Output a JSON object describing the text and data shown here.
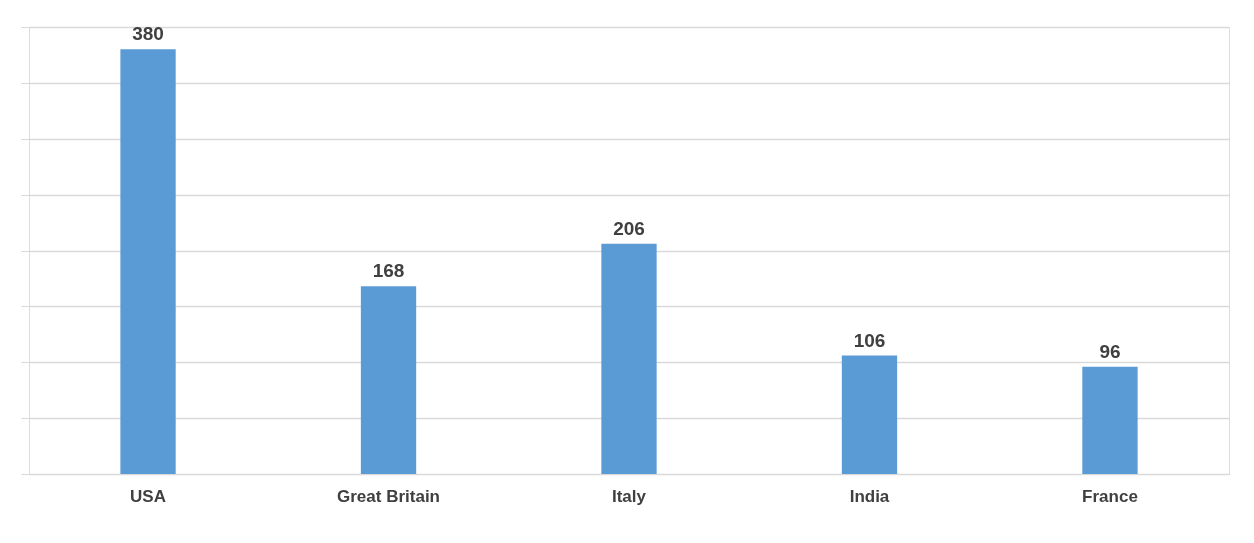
{
  "chart_data": {
    "type": "bar",
    "categories": [
      "USA",
      "Great Britain",
      "Italy",
      "India",
      "France"
    ],
    "values": [
      380,
      168,
      206,
      106,
      96
    ],
    "color": "#5b9bd5",
    "ylim": [
      0,
      400
    ],
    "yticks": [
      {
        "value": 0,
        "label": null
      },
      {
        "value": 50,
        "label": null
      },
      {
        "value": 100,
        "label": null
      },
      {
        "value": 150,
        "label": null
      },
      {
        "value": 200,
        "label": null
      },
      {
        "value": 250,
        "label": null
      },
      {
        "value": 300,
        "label": null
      },
      {
        "value": 350,
        "label": null
      },
      {
        "value": 400,
        "label": null
      }
    ],
    "grid": "y",
    "tick_labels": "x",
    "data_labels": true
  }
}
